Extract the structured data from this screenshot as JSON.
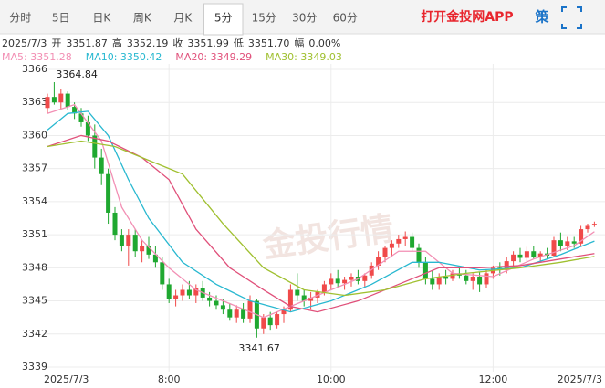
{
  "toolbar": {
    "tabs": [
      "分时",
      "5日",
      "日K",
      "周K",
      "月K",
      "5分",
      "15分",
      "30分",
      "60分"
    ],
    "active": 5,
    "app_link": "打开金投网APP",
    "icon": "策"
  },
  "info": {
    "date": "2025/7/3",
    "items": [
      {
        "label": "开",
        "value": "3351.87"
      },
      {
        "label": "高",
        "value": "3352.19"
      },
      {
        "label": "收",
        "value": "3351.99"
      },
      {
        "label": "低",
        "value": "3351.70"
      },
      {
        "label": "幅",
        "value": "0.00%"
      }
    ]
  },
  "chart_data": {
    "type": "candlestick",
    "watermark": "金投行情",
    "ylim": [
      3339,
      3366
    ],
    "yticks": [
      3366,
      3363,
      3360,
      3357,
      3354,
      3351,
      3348,
      3345,
      3342,
      3339
    ],
    "xlim": [
      0,
      81
    ],
    "xticks": [
      {
        "value": 18,
        "label": "8:00"
      },
      {
        "value": 42,
        "label": "10:00"
      },
      {
        "value": 66,
        "label": "12:00"
      }
    ],
    "start_label": "2025/7/3",
    "end_label": "2025/7/3",
    "grid": true,
    "up_color": "#f04a4a",
    "down_color": "#1fa830",
    "ohlc": [
      [
        3362.5,
        3363.8,
        3362.0,
        3363.5
      ],
      [
        3363.5,
        3364.84,
        3362.8,
        3363.0
      ],
      [
        3363.0,
        3364.2,
        3362.4,
        3363.8
      ],
      [
        3363.8,
        3364.0,
        3362.3,
        3362.6
      ],
      [
        3362.6,
        3363.0,
        3361.5,
        3362.0
      ],
      [
        3362.0,
        3362.5,
        3360.8,
        3361.2
      ],
      [
        3361.2,
        3361.8,
        3359.5,
        3360.0
      ],
      [
        3360.0,
        3361.0,
        3357.0,
        3358.0
      ],
      [
        3358.0,
        3358.8,
        3355.5,
        3356.5
      ],
      [
        3356.5,
        3357.0,
        3352.0,
        3353.0
      ],
      [
        3353.0,
        3353.5,
        3350.5,
        3351.0
      ],
      [
        3351.0,
        3351.5,
        3349.5,
        3350.0
      ],
      [
        3350.0,
        3351.5,
        3348.2,
        3351.0
      ],
      [
        3351.0,
        3351.5,
        3349.0,
        3349.5
      ],
      [
        3349.5,
        3350.5,
        3348.5,
        3350.0
      ],
      [
        3350.0,
        3350.8,
        3348.8,
        3349.2
      ],
      [
        3349.2,
        3350.0,
        3348.0,
        3348.5
      ],
      [
        3348.5,
        3349.0,
        3346.0,
        3346.5
      ],
      [
        3346.5,
        3347.0,
        3344.8,
        3345.2
      ],
      [
        3345.2,
        3346.0,
        3344.5,
        3345.5
      ],
      [
        3345.5,
        3346.5,
        3345.0,
        3346.0
      ],
      [
        3346.0,
        3346.8,
        3345.2,
        3345.5
      ],
      [
        3345.5,
        3346.5,
        3344.8,
        3346.2
      ],
      [
        3346.2,
        3346.8,
        3345.0,
        3345.3
      ],
      [
        3345.3,
        3345.8,
        3344.5,
        3345.0
      ],
      [
        3345.0,
        3345.5,
        3344.2,
        3344.6
      ],
      [
        3344.6,
        3345.2,
        3343.8,
        3344.2
      ],
      [
        3344.2,
        3344.8,
        3343.2,
        3343.5
      ],
      [
        3343.5,
        3344.6,
        3343.0,
        3344.2
      ],
      [
        3344.2,
        3344.8,
        3343.0,
        3343.4
      ],
      [
        3343.4,
        3345.5,
        3343.0,
        3345.0
      ],
      [
        3345.0,
        3345.2,
        3341.67,
        3342.5
      ],
      [
        3342.5,
        3343.8,
        3342.0,
        3343.5
      ],
      [
        3343.5,
        3344.0,
        3342.3,
        3342.8
      ],
      [
        3342.8,
        3344.0,
        3342.5,
        3343.8
      ],
      [
        3343.8,
        3344.5,
        3343.0,
        3344.2
      ],
      [
        3344.2,
        3346.5,
        3344.0,
        3346.0
      ],
      [
        3346.0,
        3347.5,
        3345.0,
        3345.5
      ],
      [
        3345.5,
        3346.0,
        3344.5,
        3345.0
      ],
      [
        3345.0,
        3345.8,
        3344.2,
        3345.3
      ],
      [
        3345.3,
        3346.0,
        3344.8,
        3345.8
      ],
      [
        3345.8,
        3346.8,
        3345.5,
        3346.5
      ],
      [
        3346.5,
        3347.5,
        3346.0,
        3347.0
      ],
      [
        3347.0,
        3347.8,
        3346.2,
        3346.6
      ],
      [
        3346.6,
        3347.2,
        3346.0,
        3346.9
      ],
      [
        3346.9,
        3347.5,
        3346.3,
        3347.2
      ],
      [
        3347.2,
        3347.8,
        3346.5,
        3346.8
      ],
      [
        3346.8,
        3347.5,
        3346.2,
        3347.3
      ],
      [
        3347.3,
        3348.5,
        3347.0,
        3348.2
      ],
      [
        3348.2,
        3349.5,
        3347.8,
        3349.0
      ],
      [
        3349.0,
        3350.0,
        3348.5,
        3349.8
      ],
      [
        3349.8,
        3350.5,
        3349.0,
        3350.2
      ],
      [
        3350.2,
        3351.0,
        3349.8,
        3350.6
      ],
      [
        3350.6,
        3351.3,
        3350.0,
        3350.8
      ],
      [
        3350.8,
        3351.2,
        3349.5,
        3349.8
      ],
      [
        3349.8,
        3350.2,
        3348.0,
        3348.5
      ],
      [
        3348.5,
        3349.0,
        3346.5,
        3347.0
      ],
      [
        3347.0,
        3347.8,
        3346.0,
        3346.5
      ],
      [
        3346.5,
        3347.5,
        3346.0,
        3347.2
      ],
      [
        3347.2,
        3347.8,
        3346.5,
        3347.0
      ],
      [
        3347.0,
        3347.8,
        3346.8,
        3347.5
      ],
      [
        3347.5,
        3348.0,
        3347.0,
        3347.3
      ],
      [
        3347.3,
        3347.8,
        3346.5,
        3346.8
      ],
      [
        3346.8,
        3347.5,
        3346.0,
        3347.2
      ],
      [
        3347.2,
        3347.6,
        3345.8,
        3346.5
      ],
      [
        3346.5,
        3347.8,
        3346.2,
        3347.5
      ],
      [
        3347.5,
        3348.2,
        3347.0,
        3348.0
      ],
      [
        3348.0,
        3348.5,
        3347.3,
        3347.8
      ],
      [
        3347.8,
        3349.0,
        3347.5,
        3348.6
      ],
      [
        3348.6,
        3349.5,
        3348.0,
        3349.2
      ],
      [
        3349.2,
        3349.8,
        3348.5,
        3348.9
      ],
      [
        3348.9,
        3349.9,
        3348.6,
        3349.5
      ],
      [
        3349.5,
        3350.0,
        3348.8,
        3349.0
      ],
      [
        3349.0,
        3349.5,
        3348.5,
        3349.3
      ],
      [
        3349.3,
        3349.8,
        3348.8,
        3349.1
      ],
      [
        3349.1,
        3350.8,
        3349.0,
        3350.5
      ],
      [
        3350.5,
        3351.2,
        3349.5,
        3350.0
      ],
      [
        3350.0,
        3350.8,
        3349.6,
        3350.4
      ],
      [
        3350.4,
        3350.8,
        3349.8,
        3350.2
      ],
      [
        3350.2,
        3351.8,
        3350.0,
        3351.5
      ],
      [
        3351.5,
        3352.0,
        3351.2,
        3351.8
      ],
      [
        3351.87,
        3352.19,
        3351.7,
        3351.99
      ]
    ],
    "annotations": [
      {
        "text": "3364.84",
        "index": 1,
        "value": 3364.84
      },
      {
        "text": "3341.67",
        "index": 31,
        "value": 3341.67
      }
    ],
    "series": [
      {
        "name": "MA5",
        "label": "MA5: 3351.28",
        "color": "#f28fb4",
        "x": [
          0,
          4,
          8,
          11,
          14,
          18,
          22,
          28,
          32,
          36,
          40,
          46,
          52,
          56,
          60,
          66,
          72,
          78,
          81
        ],
        "values": [
          3362,
          3362.8,
          3359.5,
          3353.5,
          3350.5,
          3348,
          3346,
          3344.5,
          3343.5,
          3344.5,
          3345.5,
          3347,
          3349.5,
          3349.5,
          3347.5,
          3347.2,
          3348.8,
          3350,
          3351.28
        ]
      },
      {
        "name": "MA10",
        "label": "MA10: 3350.42",
        "color": "#28b8d0",
        "x": [
          0,
          3,
          6,
          9,
          12,
          15,
          20,
          25,
          30,
          36,
          42,
          48,
          54,
          58,
          64,
          70,
          76,
          81
        ],
        "values": [
          3360.5,
          3362,
          3362.2,
          3360,
          3356,
          3352.5,
          3348.5,
          3346.5,
          3345,
          3344,
          3345,
          3346.5,
          3348.5,
          3348.5,
          3347.8,
          3348,
          3349.2,
          3350.42
        ]
      },
      {
        "name": "MA20",
        "label": "MA20: 3349.29",
        "color": "#e0507a",
        "x": [
          0,
          5,
          9,
          14,
          18,
          22,
          27,
          32,
          36,
          40,
          46,
          52,
          58,
          64,
          70,
          76,
          81
        ],
        "values": [
          3359,
          3360,
          3359.5,
          3358,
          3356,
          3351.5,
          3348,
          3346,
          3344.5,
          3344,
          3345,
          3346.5,
          3348,
          3348,
          3348.2,
          3348.8,
          3349.29
        ]
      },
      {
        "name": "MA30",
        "label": "MA30: 3349.03",
        "color": "#a0c030",
        "x": [
          0,
          5,
          10,
          16,
          20,
          26,
          32,
          38,
          44,
          50,
          56,
          62,
          70,
          76,
          81
        ],
        "values": [
          3359,
          3359.5,
          3359,
          3357.5,
          3356.5,
          3352,
          3348,
          3346,
          3345.5,
          3346,
          3347,
          3347.5,
          3348,
          3348.5,
          3349.03
        ]
      }
    ]
  }
}
